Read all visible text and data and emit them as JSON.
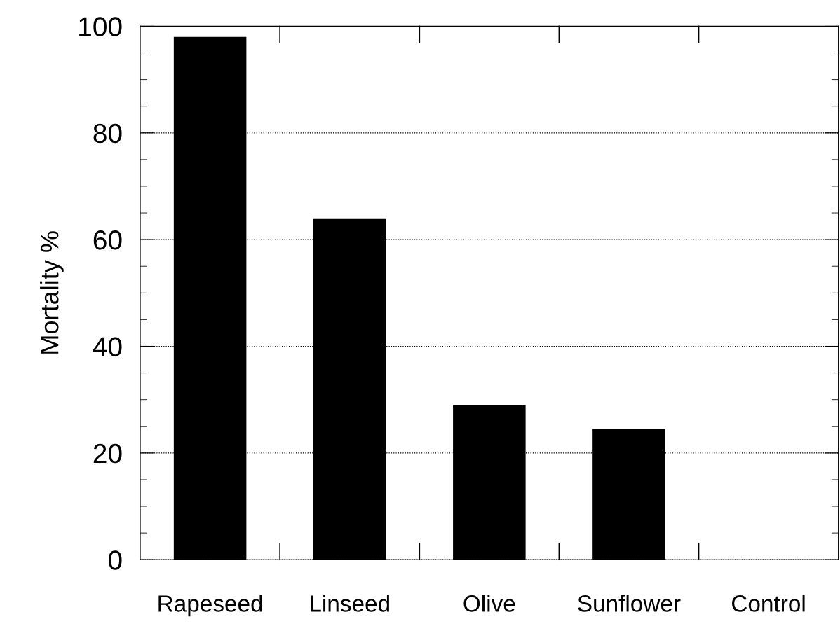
{
  "chart_data": {
    "type": "bar",
    "ylabel": "Mortality %",
    "categories": [
      "Rapeseed",
      "Linseed",
      "Olive",
      "Sunflower",
      "Control"
    ],
    "values": [
      98,
      64,
      29,
      24.5,
      0
    ],
    "color": "#000000",
    "ylim": [
      0,
      100
    ],
    "yticks": [
      0,
      20,
      40,
      60,
      80,
      100
    ],
    "grid": "y",
    "line_style": "dotted"
  }
}
